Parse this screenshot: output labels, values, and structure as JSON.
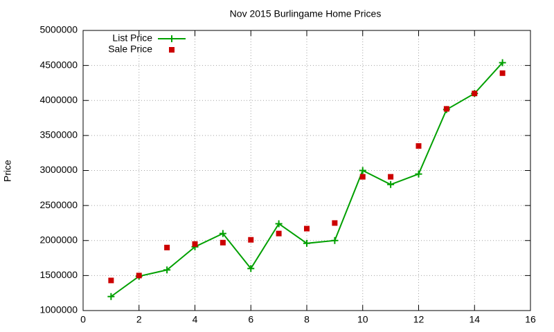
{
  "chart_data": {
    "type": "line",
    "title": "Nov 2015 Burlingame Home Prices",
    "y_label": "Price",
    "x": [
      1,
      2,
      3,
      4,
      5,
      6,
      7,
      8,
      9,
      10,
      11,
      12,
      13,
      14,
      15
    ],
    "series": [
      {
        "name": "List Price",
        "color": "#00a000",
        "style": "linespoints",
        "values": [
          1200000,
          1490000,
          1580000,
          1910000,
          2100000,
          1600000,
          2240000,
          1960000,
          2000000,
          3000000,
          2800000,
          2950000,
          3870000,
          4100000,
          4540000
        ]
      },
      {
        "name": "Sale Price",
        "color": "#cc0000",
        "style": "points",
        "values": [
          1430000,
          1500000,
          1900000,
          1950000,
          1970000,
          2010000,
          2100000,
          2170000,
          2250000,
          2910000,
          2910000,
          3350000,
          3880000,
          4100000,
          4390000
        ]
      }
    ],
    "xlim": [
      0,
      16
    ],
    "xticks": [
      0,
      2,
      4,
      6,
      8,
      10,
      12,
      14,
      16
    ],
    "ylim": [
      1000000,
      5000000
    ],
    "yticks": [
      1000000,
      1500000,
      2000000,
      2500000,
      3000000,
      3500000,
      4000000,
      4500000,
      5000000
    ],
    "grid": true,
    "legend": "top left"
  }
}
